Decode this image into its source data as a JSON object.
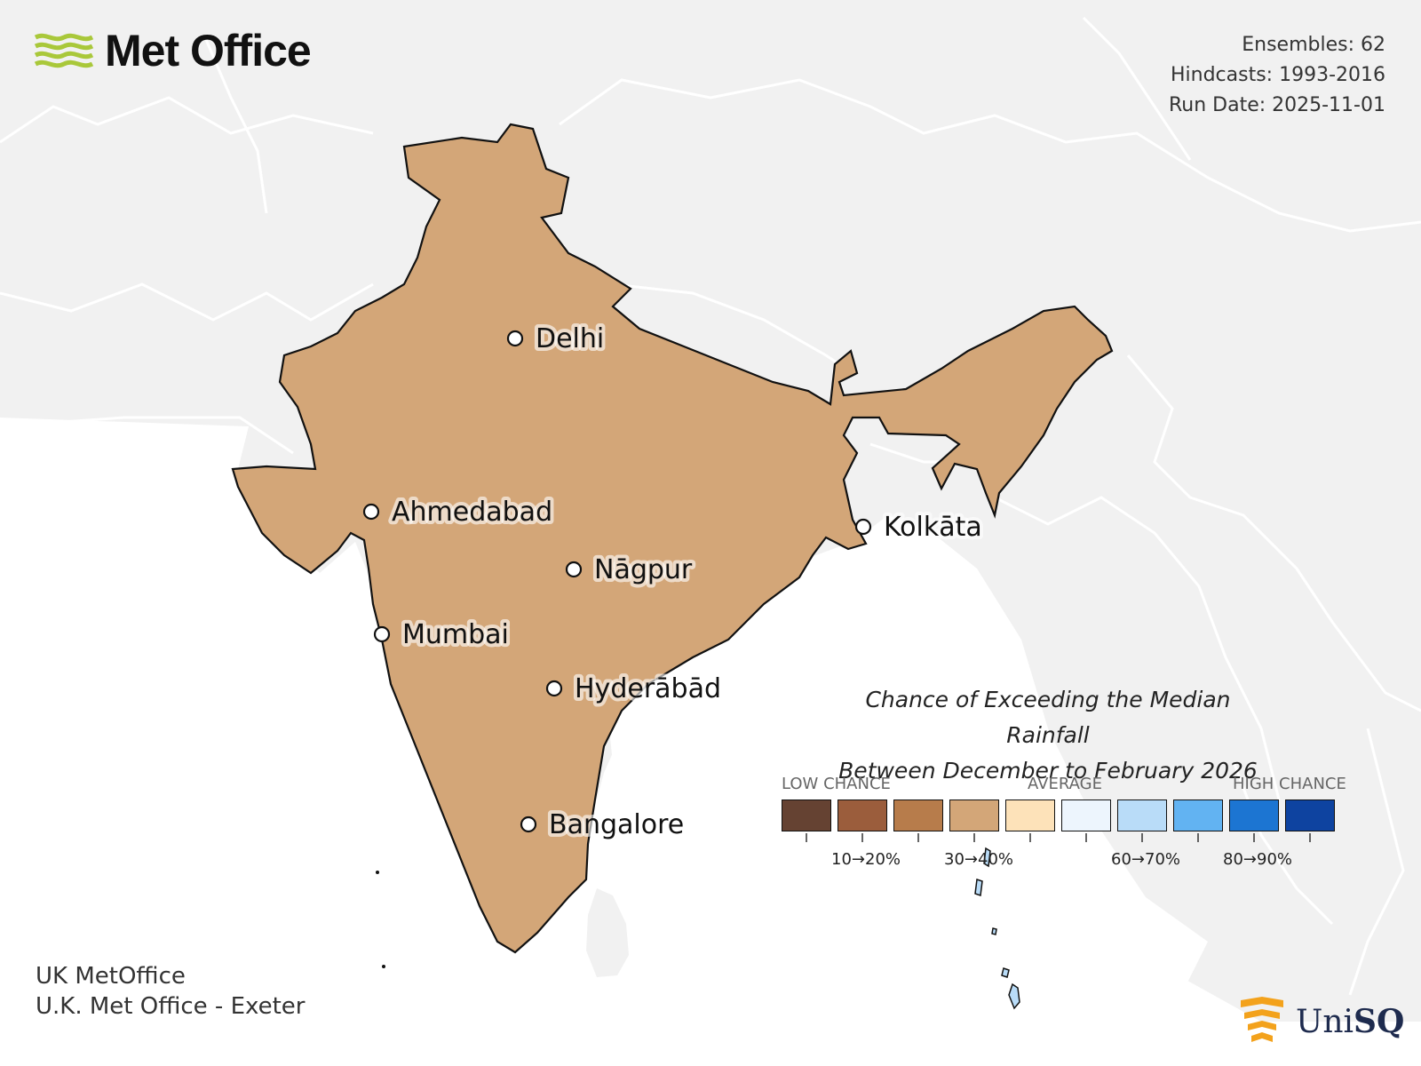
{
  "logo": {
    "text": "Met Office",
    "accent": "#a9c83a"
  },
  "meta": {
    "ensembles": "Ensembles: 62",
    "hindcasts": "Hindcasts: 1993-2016",
    "run_date": "Run Date: 2025-11-01"
  },
  "cities": [
    {
      "name": "Delhi"
    },
    {
      "name": "Ahmedabad"
    },
    {
      "name": "Kolkāta"
    },
    {
      "name": "Nāgpur"
    },
    {
      "name": "Mumbai"
    },
    {
      "name": "Hyderābād"
    },
    {
      "name": "Bangalore"
    }
  ],
  "legend": {
    "title_line1": "Chance of Exceeding the Median Rainfall",
    "title_line2": "Between December to February 2026",
    "low_label": "LOW CHANCE",
    "avg_label": "AVERAGE",
    "high_label": "HIGH CHANCE",
    "colors": [
      "#654232",
      "#9b5d3c",
      "#b77c4b",
      "#d3a678",
      "#fde2b9",
      "#edf5fd",
      "#b9dcf8",
      "#62b3f2",
      "#1c75d2",
      "#0e43a0"
    ],
    "tick_labels": [
      "10→20%",
      "30→40%",
      "60→70%",
      "80→90%"
    ]
  },
  "credits": {
    "line1": "UK MetOffice",
    "line2": "U.K. Met Office - Exeter"
  },
  "partner_logo": {
    "text_a": "Uni",
    "text_b": "SQ",
    "accent": "#f3a21c"
  },
  "colors": {
    "land": "#f1f1f1",
    "ocean": "#ffffff",
    "border": "#ffffff",
    "india_outline": "#111111",
    "state_border": "#666666"
  }
}
